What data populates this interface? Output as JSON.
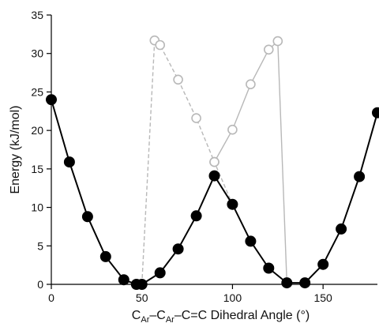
{
  "chart_data": {
    "type": "line",
    "xlabel": {
      "parts": [
        {
          "text": "C",
          "sub": false
        },
        {
          "text": "Ar",
          "sub": true
        },
        {
          "text": "–C",
          "sub": false
        },
        {
          "text": "Ar",
          "sub": true
        },
        {
          "text": "–C=C Dihedral Angle (°)",
          "sub": false
        }
      ]
    },
    "ylabel": "Energy (kJ/mol)",
    "xlim": [
      0,
      180
    ],
    "ylim": [
      0,
      35
    ],
    "xticks": [
      0,
      50,
      100,
      150
    ],
    "yticks": [
      0,
      5,
      10,
      15,
      20,
      25,
      30,
      35
    ],
    "grid": false,
    "series": [
      {
        "color": "#000000",
        "marker": "filled-circle",
        "line": "solid",
        "x": [
          0,
          10,
          20,
          30,
          40,
          47,
          50,
          60,
          70,
          80,
          90,
          100,
          110,
          120,
          130,
          140,
          150,
          160,
          170,
          180
        ],
        "y": [
          24.0,
          15.9,
          8.8,
          3.6,
          0.6,
          0.0,
          0.0,
          1.5,
          4.6,
          8.9,
          14.1,
          10.4,
          5.6,
          2.1,
          0.2,
          0.2,
          2.6,
          7.2,
          14.0,
          22.3
        ]
      },
      {
        "color": "#b8b8b8",
        "marker": "open-circle",
        "line": "dashed",
        "x": [
          50,
          57,
          60,
          70,
          80,
          90,
          100
        ],
        "y": [
          0.0,
          31.7,
          31.1,
          26.6,
          21.6,
          15.9,
          10.4
        ]
      },
      {
        "color": "#b8b8b8",
        "marker": "open-circle",
        "line": "solid",
        "x": [
          90,
          100,
          110,
          120,
          125,
          130
        ],
        "y": [
          15.9,
          20.1,
          26.0,
          30.5,
          31.6,
          0.2
        ]
      }
    ]
  }
}
